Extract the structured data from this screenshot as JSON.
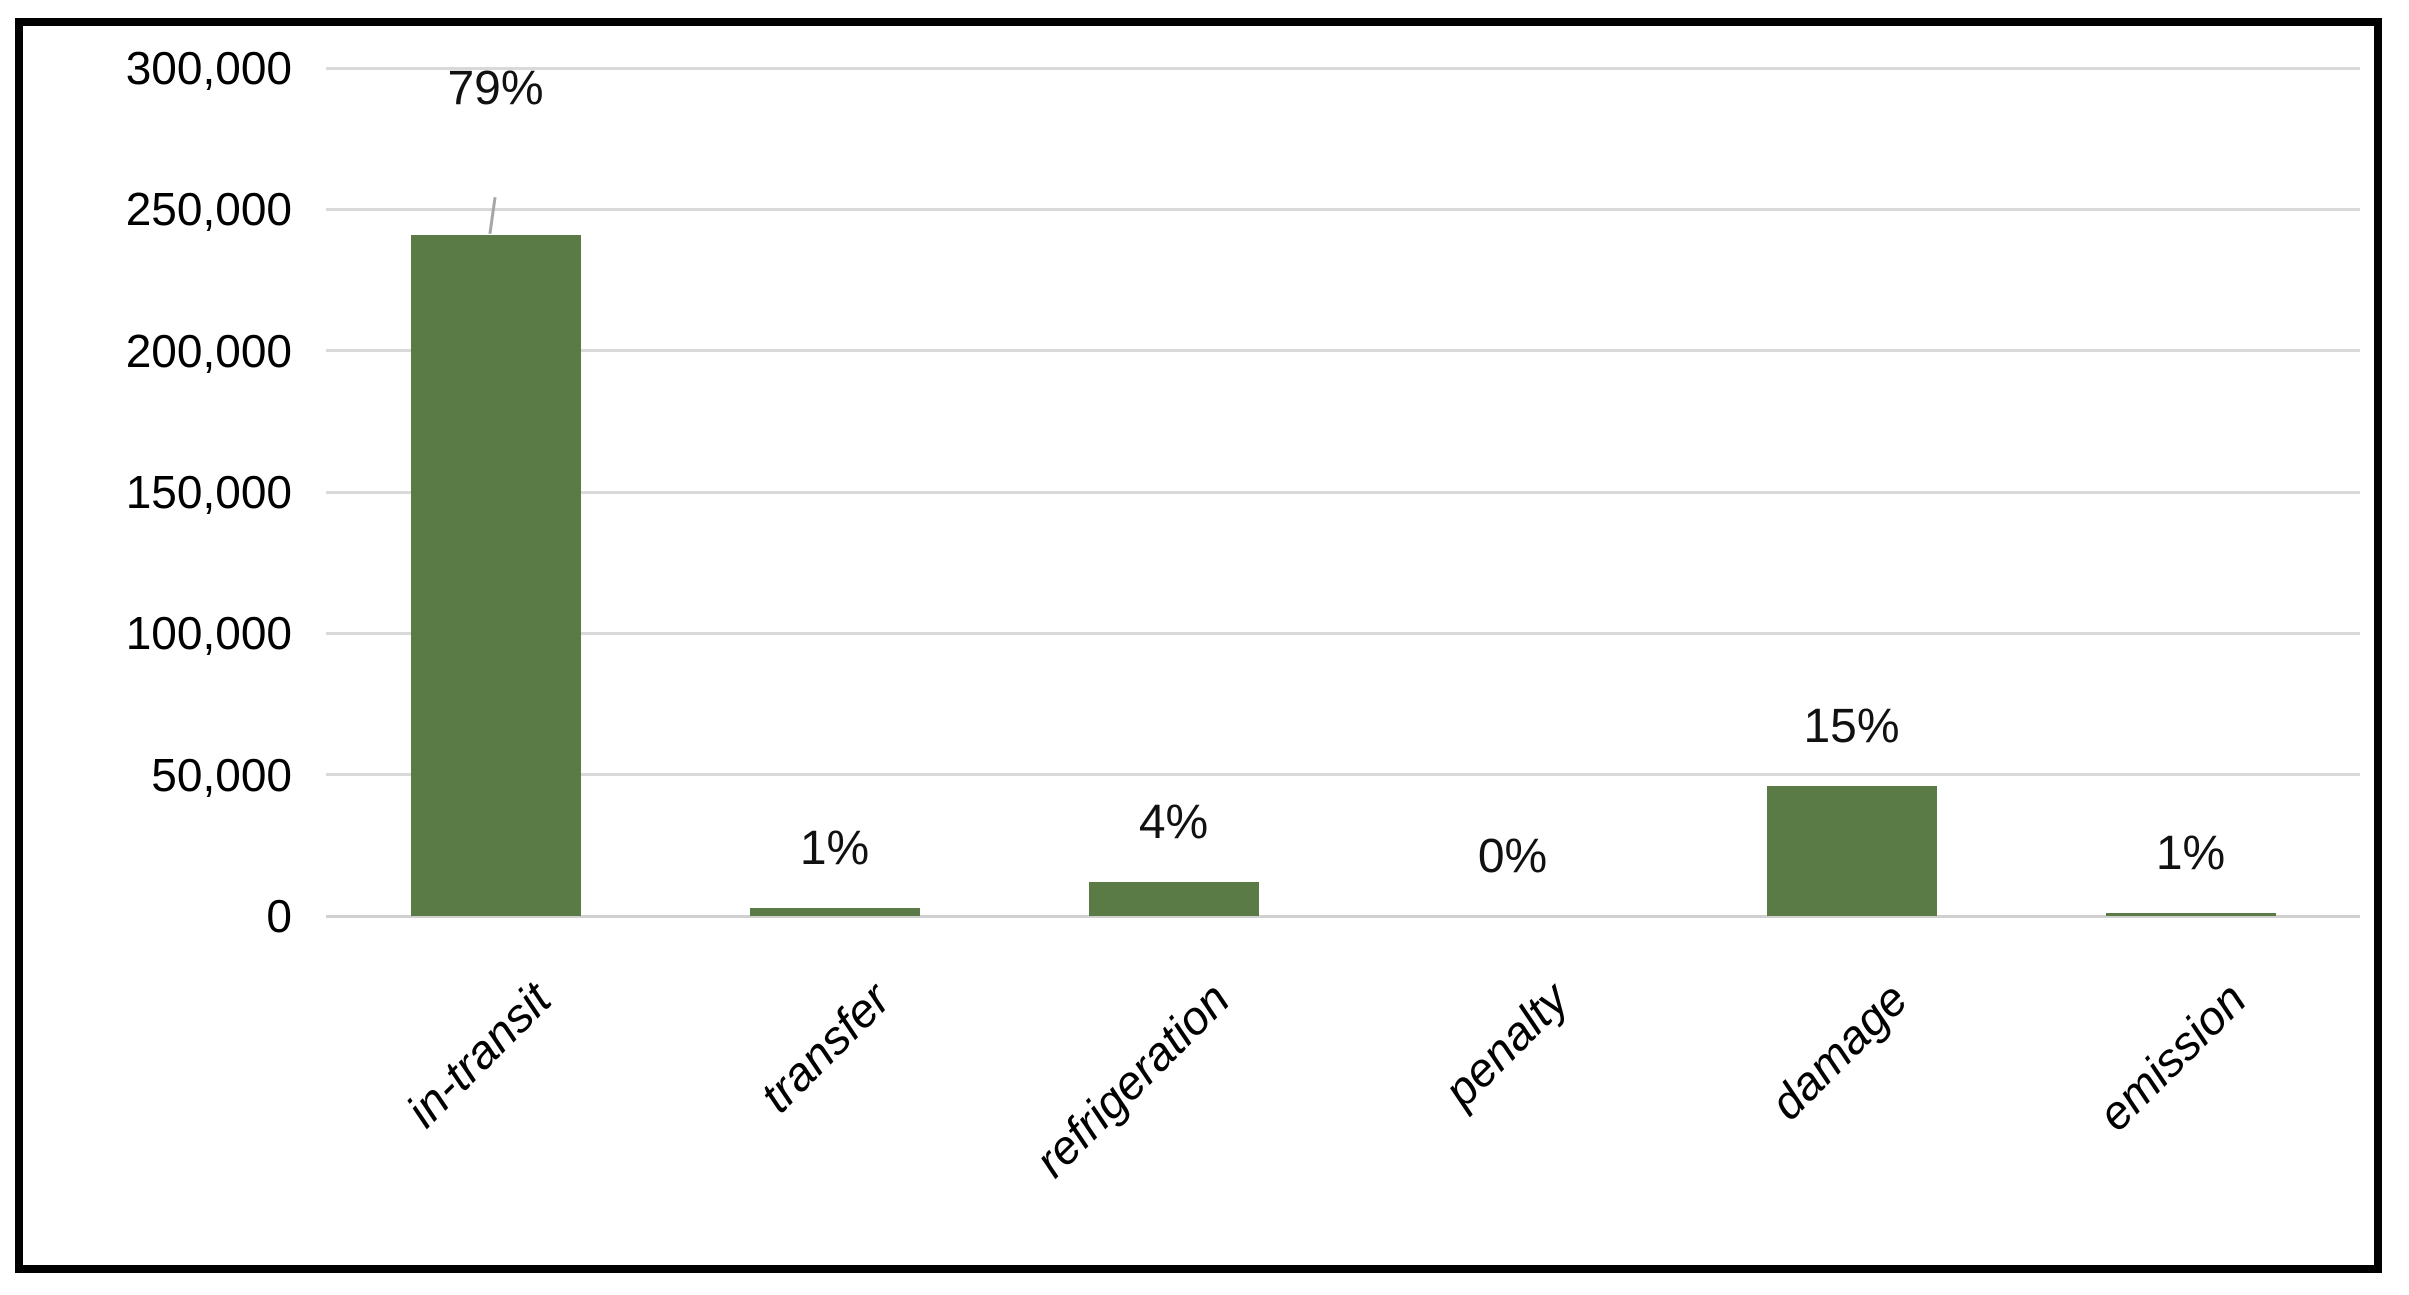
{
  "chart_data": {
    "type": "bar",
    "title": "",
    "xlabel": "",
    "ylabel": "",
    "categories": [
      "in-transit",
      "transfer",
      "refrigeration",
      "penalty",
      "damage",
      "emission"
    ],
    "values": [
      241000,
      3000,
      12000,
      0,
      46000,
      1000
    ],
    "percent_labels": [
      "79%",
      "1%",
      "4%",
      "0%",
      "15%",
      "1%"
    ],
    "ylim": [
      0,
      300000
    ],
    "ytick_interval": 50000,
    "yticks": [
      {
        "value": 300000,
        "label": "300,000"
      },
      {
        "value": 250000,
        "label": "250,000"
      },
      {
        "value": 200000,
        "label": "200,000"
      },
      {
        "value": 150000,
        "label": "150,000"
      },
      {
        "value": 100000,
        "label": "100,000"
      },
      {
        "value": 50000,
        "label": "50,000"
      },
      {
        "value": 0,
        "label": "0"
      }
    ],
    "grid": true,
    "legend": false,
    "label_position": "outside-end",
    "leader_line_on_index": 0,
    "style": {
      "bar_color": "#5b7b46",
      "gridline_color": "#d9d9d9",
      "axis_line_color": "#d0d0d0",
      "text_color": "#000000",
      "leader_line_color": "#a6a6a6",
      "frame_border_color": "#000000"
    }
  }
}
